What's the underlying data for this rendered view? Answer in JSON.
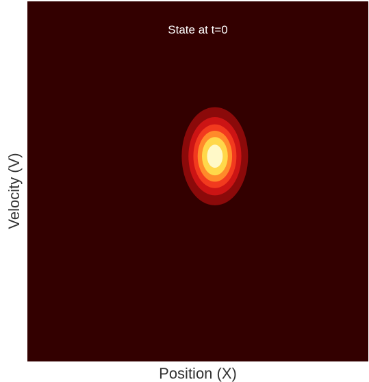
{
  "chart_data": {
    "type": "heatmap",
    "title": "State at t=0",
    "xlabel": "Position (X)",
    "ylabel": "Velocity (V)",
    "grid": false,
    "legend": "none",
    "colormap": "hot",
    "background_color": "#330000",
    "distribution": {
      "shape": "gaussian",
      "center": [
        0.55,
        0.57
      ],
      "spread": [
        0.05,
        0.07
      ]
    },
    "contour_levels": [
      {
        "level": 0.15,
        "color": "#8b0a0a"
      },
      {
        "level": 0.3,
        "color": "#cc1414"
      },
      {
        "level": 0.45,
        "color": "#f23a1e"
      },
      {
        "level": 0.6,
        "color": "#ff8a2a"
      },
      {
        "level": 0.75,
        "color": "#ffd84a"
      },
      {
        "level": 0.9,
        "color": "#fff9c8"
      }
    ]
  }
}
